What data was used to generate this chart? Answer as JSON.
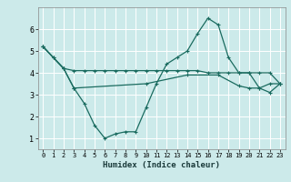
{
  "xlabel": "Humidex (Indice chaleur)",
  "background_color": "#cceaea",
  "grid_color": "#ffffff",
  "line_color": "#1a6b5f",
  "xlim": [
    -0.5,
    23.5
  ],
  "ylim": [
    0.5,
    7.0
  ],
  "xticks": [
    0,
    1,
    2,
    3,
    4,
    5,
    6,
    7,
    8,
    9,
    10,
    11,
    12,
    13,
    14,
    15,
    16,
    17,
    18,
    19,
    20,
    21,
    22,
    23
  ],
  "yticks": [
    1,
    2,
    3,
    4,
    5,
    6
  ],
  "line1_x": [
    0,
    1,
    2,
    3,
    4,
    5,
    6,
    7,
    8,
    9,
    10,
    11,
    12,
    13,
    14,
    15,
    16,
    17,
    18,
    19,
    20,
    21,
    22,
    23
  ],
  "line1_y": [
    5.2,
    4.7,
    4.2,
    4.1,
    4.1,
    4.1,
    4.1,
    4.1,
    4.1,
    4.1,
    4.1,
    4.1,
    4.1,
    4.1,
    4.1,
    4.1,
    4.0,
    4.0,
    4.0,
    4.0,
    4.0,
    4.0,
    4.0,
    3.5
  ],
  "line2_x": [
    0,
    1,
    2,
    3,
    4,
    5,
    6,
    7,
    8,
    9,
    10,
    11,
    12,
    13,
    14,
    15,
    16,
    17,
    18,
    19,
    20,
    21,
    22,
    23
  ],
  "line2_y": [
    5.2,
    4.7,
    4.2,
    3.3,
    2.6,
    1.6,
    1.0,
    1.2,
    1.3,
    1.3,
    2.4,
    3.5,
    4.4,
    4.7,
    5.0,
    5.8,
    6.5,
    6.2,
    4.7,
    4.0,
    4.0,
    3.3,
    3.1,
    3.5
  ],
  "line3_x": [
    0,
    2,
    3,
    10,
    14,
    17,
    19,
    20,
    21,
    22,
    23
  ],
  "line3_y": [
    5.2,
    4.2,
    3.3,
    3.5,
    3.9,
    3.9,
    3.4,
    3.3,
    3.3,
    3.5,
    3.5
  ],
  "marker": "+"
}
